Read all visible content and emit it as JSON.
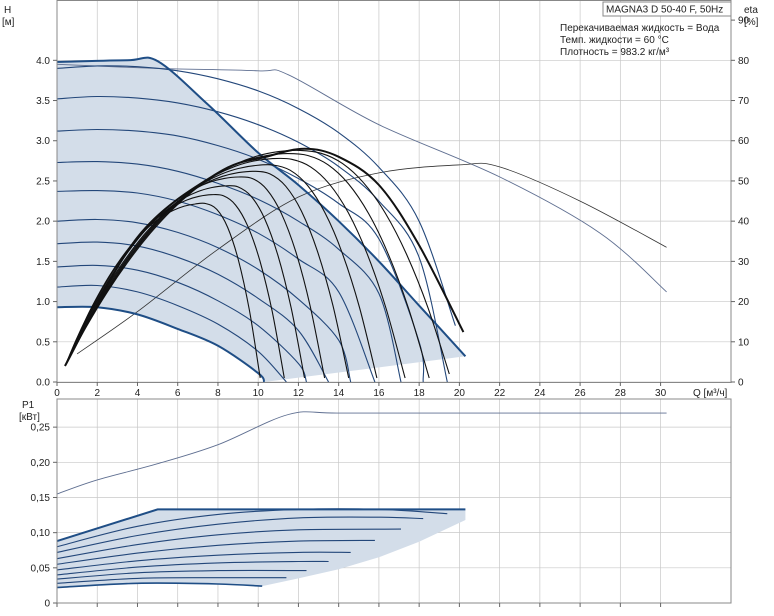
{
  "header": {
    "pump_model": "MAGNA3 D 50-40 F, 50Hz",
    "info_lines": [
      "Перекачиваемая жидкость = Вода",
      "Темп. жидкости = 60 °C",
      "Плотность = 983.2 кг/м³"
    ]
  },
  "colors": {
    "area_fill": "#d3dde9",
    "envelope": "#1f4e86",
    "curve_blue": "#23477a",
    "eff_black": "#111111",
    "twin_line": "#5f6f91",
    "grid": "#c8c8c8"
  },
  "chart_data": [
    {
      "type": "line",
      "title": "",
      "xlabel": "Q [м³/ч]",
      "ylabel": "H\n[м]",
      "ylabel_parts": [
        "H",
        "[м]"
      ],
      "y2label_parts": [
        "eta",
        "[%]"
      ],
      "x_ticks": [
        "0",
        "2",
        "4",
        "6",
        "8",
        "10",
        "12",
        "14",
        "16",
        "18",
        "20",
        "22",
        "24",
        "26",
        "28",
        "30"
      ],
      "y_ticks": [
        "0.0",
        "0.5",
        "1.0",
        "1.5",
        "2.0",
        "2.5",
        "3.0",
        "3.5",
        "4.0"
      ],
      "y2_ticks": [
        "0",
        "10",
        "20",
        "30",
        "40",
        "50",
        "60",
        "70",
        "80",
        "90"
      ],
      "xlim": [
        0,
        33.5
      ],
      "ylim": [
        0,
        4.75
      ],
      "y2lim": [
        0,
        95
      ],
      "grid": true,
      "head_envelope": {
        "name": "max curve",
        "x": [
          0,
          3.5,
          5.0,
          7.5,
          10.0,
          12.0,
          14.0,
          16.0,
          18.0,
          20.3
        ],
        "y": [
          3.98,
          4.0,
          3.99,
          3.45,
          2.85,
          2.45,
          2.0,
          1.5,
          0.95,
          0.32
        ]
      },
      "head_min": {
        "x": [
          0,
          2.0,
          4.0,
          6.0,
          8.0,
          10.0,
          10.3
        ],
        "y": [
          0.93,
          0.93,
          0.84,
          0.66,
          0.45,
          0.11,
          0.0
        ]
      },
      "head_curves": [
        {
          "x": [
            0,
            2,
            4,
            6,
            8,
            10,
            11.4
          ],
          "y": [
            1.18,
            1.2,
            1.12,
            0.95,
            0.72,
            0.38,
            0.0
          ]
        },
        {
          "x": [
            0,
            2,
            4,
            6,
            8,
            10,
            12,
            12.4
          ],
          "y": [
            1.43,
            1.45,
            1.39,
            1.24,
            1.01,
            0.7,
            0.23,
            0.0
          ]
        },
        {
          "x": [
            0,
            2,
            4,
            6,
            8,
            10,
            12,
            13.5
          ],
          "y": [
            1.72,
            1.74,
            1.69,
            1.55,
            1.34,
            1.04,
            0.64,
            0.0
          ]
        },
        {
          "x": [
            0,
            2,
            4,
            6,
            8,
            10,
            12,
            14,
            14.6
          ],
          "y": [
            2.0,
            2.02,
            1.98,
            1.86,
            1.67,
            1.4,
            1.03,
            0.52,
            0.0
          ]
        },
        {
          "x": [
            0,
            2,
            4,
            6,
            8,
            10,
            12,
            14,
            15.8
          ],
          "y": [
            2.37,
            2.38,
            2.35,
            2.25,
            2.08,
            1.85,
            1.53,
            1.12,
            0.0
          ]
        },
        {
          "x": [
            0,
            2,
            4,
            6,
            8,
            10,
            12,
            14,
            16,
            17.1
          ],
          "y": [
            2.73,
            2.74,
            2.71,
            2.62,
            2.47,
            2.27,
            2.0,
            1.65,
            1.1,
            0.0
          ]
        },
        {
          "x": [
            0,
            2,
            4,
            6,
            8,
            10,
            12,
            14,
            16,
            18,
            18.2
          ],
          "y": [
            3.12,
            3.14,
            3.12,
            3.06,
            2.94,
            2.77,
            2.53,
            2.22,
            1.78,
            0.5,
            0.0
          ]
        },
        {
          "x": [
            0,
            2,
            4,
            6,
            8,
            10,
            12,
            14,
            16,
            18,
            19.4
          ],
          "y": [
            3.52,
            3.55,
            3.53,
            3.47,
            3.36,
            3.2,
            2.98,
            2.68,
            2.25,
            1.55,
            0.0
          ]
        },
        {
          "x": [
            0,
            2,
            4,
            6,
            8,
            10,
            12,
            14,
            16,
            18,
            19.8
          ],
          "y": [
            3.9,
            3.93,
            3.92,
            3.87,
            3.77,
            3.62,
            3.4,
            3.1,
            2.67,
            2.0,
            0.7
          ]
        }
      ],
      "eff_curves": [
        {
          "peak": [
            7.3,
            2.22
          ],
          "end": [
            10.1,
            0.05
          ]
        },
        {
          "peak": [
            7.9,
            2.33
          ],
          "end": [
            11.3,
            0.05
          ]
        },
        {
          "peak": [
            8.6,
            2.44
          ],
          "end": [
            12.3,
            0.05
          ]
        },
        {
          "peak": [
            9.2,
            2.55
          ],
          "end": [
            13.3,
            0.05
          ]
        },
        {
          "peak": [
            9.9,
            2.62
          ],
          "end": [
            14.5,
            0.05
          ]
        },
        {
          "peak": [
            10.5,
            2.7
          ],
          "end": [
            15.9,
            0.05
          ]
        },
        {
          "peak": [
            11.1,
            2.78
          ],
          "end": [
            17.3,
            0.05
          ]
        },
        {
          "peak": [
            11.6,
            2.84
          ],
          "end": [
            18.5,
            0.05
          ]
        },
        {
          "peak": [
            12.0,
            2.88
          ],
          "end": [
            19.5,
            0.1
          ]
        }
      ],
      "eff_envelope": {
        "x": [
          0.4,
          4.0,
          8.0,
          10.4,
          12.3,
          14.0,
          16.0,
          18.0,
          20.2
        ],
        "y": [
          0.2,
          1.8,
          2.6,
          2.8,
          2.9,
          2.8,
          2.45,
          1.7,
          0.62
        ]
      },
      "eff_min": {
        "x": [
          0.4,
          3.0,
          5.0,
          7.3
        ],
        "y": [
          0.2,
          1.22,
          1.78,
          2.22
        ]
      },
      "twin_head": {
        "x": [
          0,
          5.0,
          10.0,
          11.5,
          16.0,
          22.0,
          27.0,
          30.3
        ],
        "y": [
          3.95,
          3.9,
          3.87,
          3.82,
          3.2,
          2.55,
          1.85,
          1.12
        ]
      },
      "twin_eta": {
        "x": [
          1.0,
          4.0,
          8.0,
          12.0,
          16.0,
          20.0,
          22.0,
          26.0,
          30.3
        ],
        "y": [
          7,
          17.5,
          33,
          46,
          52,
          54,
          53.5,
          45,
          33.5
        ]
      }
    },
    {
      "type": "line",
      "title": "",
      "xlabel": "",
      "ylabel_parts": [
        "P1",
        "[кВт]"
      ],
      "y_ticks": [
        "0",
        "0,05",
        "0,10",
        "0,15",
        "0,20",
        "0,25"
      ],
      "ylim": [
        0,
        0.29
      ],
      "xlim": [
        0,
        33.5
      ],
      "grid": true,
      "power_max": {
        "x": [
          0,
          5.0,
          20.3
        ],
        "y": [
          0.088,
          0.133,
          0.133
        ]
      },
      "power_min": {
        "x": [
          0,
          4.0,
          8.0,
          10.2
        ],
        "y": [
          0.022,
          0.028,
          0.027,
          0.024
        ]
      },
      "power_curves": [
        {
          "x": [
            0,
            4,
            8,
            11.4
          ],
          "y": [
            0.028,
            0.035,
            0.036,
            0.036
          ]
        },
        {
          "x": [
            0,
            4,
            8,
            12.4
          ],
          "y": [
            0.034,
            0.043,
            0.046,
            0.046
          ]
        },
        {
          "x": [
            0,
            4,
            8,
            12,
            13.5
          ],
          "y": [
            0.04,
            0.051,
            0.057,
            0.059,
            0.059
          ]
        },
        {
          "x": [
            0,
            4,
            8,
            12,
            14.6
          ],
          "y": [
            0.047,
            0.06,
            0.068,
            0.072,
            0.072
          ]
        },
        {
          "x": [
            0,
            4,
            8,
            12,
            15.8
          ],
          "y": [
            0.055,
            0.071,
            0.082,
            0.088,
            0.089
          ]
        },
        {
          "x": [
            0,
            4,
            8,
            12,
            17.1
          ],
          "y": [
            0.063,
            0.083,
            0.097,
            0.104,
            0.105
          ]
        },
        {
          "x": [
            0,
            4,
            8,
            12,
            16,
            18.2
          ],
          "y": [
            0.072,
            0.096,
            0.112,
            0.121,
            0.122,
            0.12
          ]
        },
        {
          "x": [
            0,
            4,
            8,
            12,
            16,
            19.4
          ],
          "y": [
            0.08,
            0.109,
            0.126,
            0.133,
            0.133,
            0.127
          ]
        }
      ],
      "power_boundary": {
        "x": [
          10.2,
          12.0,
          14.0,
          16.0,
          18.0,
          20.3
        ],
        "y": [
          0.024,
          0.035,
          0.048,
          0.065,
          0.087,
          0.118
        ]
      },
      "twin_power": {
        "x": [
          0,
          2.0,
          5.0,
          8.0,
          11.5,
          14.0,
          20.0,
          30.3
        ],
        "y": [
          0.155,
          0.175,
          0.198,
          0.225,
          0.268,
          0.27,
          0.27,
          0.27
        ]
      }
    }
  ]
}
